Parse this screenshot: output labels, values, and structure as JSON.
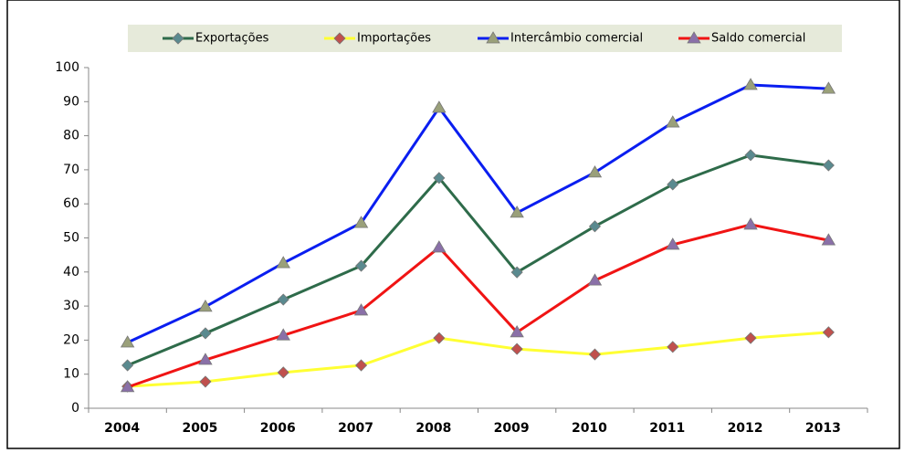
{
  "chart_data": {
    "type": "line",
    "categories": [
      "2004",
      "2005",
      "2006",
      "2007",
      "2008",
      "2009",
      "2010",
      "2011",
      "2012",
      "2013"
    ],
    "series": [
      {
        "name": "Exportações",
        "color": "#2e6b4a",
        "marker": "diamond",
        "marker_color": "#5a8a8f",
        "values": [
          12.6,
          22,
          31.9,
          41.8,
          67.6,
          39.9,
          53.4,
          65.7,
          74.3,
          71.3
        ]
      },
      {
        "name": "Importações",
        "color": "#ffff33",
        "marker": "diamond",
        "marker_color": "#c0504d",
        "values": [
          6.4,
          7.8,
          10.5,
          12.6,
          20.6,
          17.4,
          15.8,
          18,
          20.6,
          22.3
        ]
      },
      {
        "name": "Intercâmbio comercial",
        "color": "#0a1ef0",
        "marker": "triangle",
        "marker_color": "#9aa07a",
        "values": [
          19.3,
          29.8,
          42.6,
          54.4,
          88.2,
          57.4,
          69.2,
          83.9,
          94.9,
          93.8
        ]
      },
      {
        "name": "Saldo comercial",
        "color": "#f01414",
        "marker": "triangle",
        "marker_color": "#8a70a8",
        "values": [
          6.2,
          14.2,
          21.4,
          28.7,
          47.2,
          22.3,
          37.5,
          48,
          53.9,
          49.3
        ]
      }
    ],
    "ylim": [
      0,
      100
    ],
    "yticks": [
      0,
      10,
      20,
      30,
      40,
      50,
      60,
      70,
      80,
      90,
      100
    ],
    "grid": false,
    "legend": "top"
  }
}
